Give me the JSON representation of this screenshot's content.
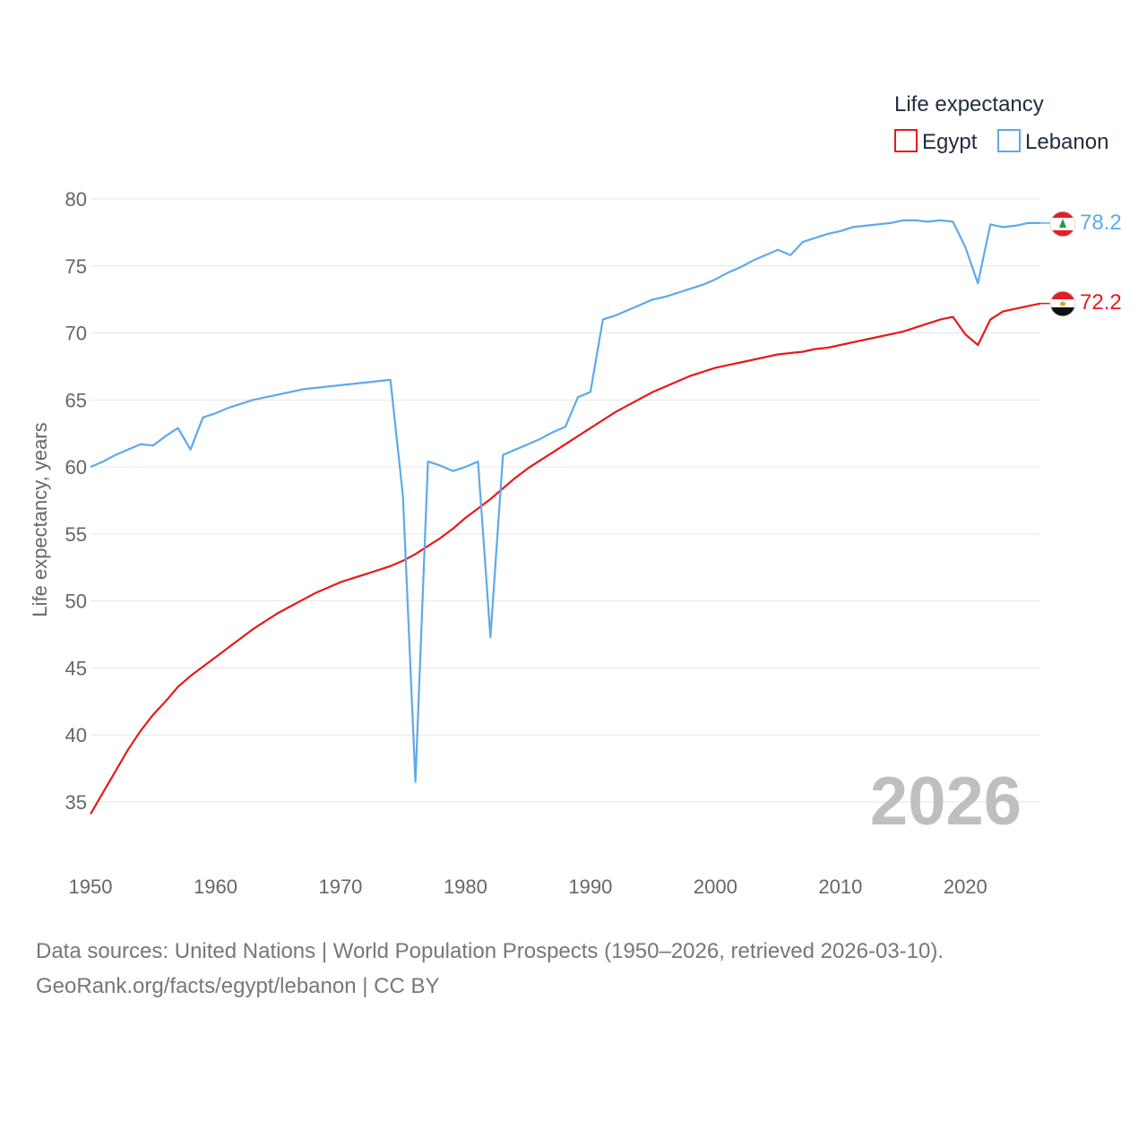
{
  "chart_data": {
    "type": "line",
    "legend_title": "Life expectancy",
    "legend_placement": "top-right",
    "ylabel": "Life expectancy, years",
    "xlabel": "",
    "xlim": [
      1950,
      2026
    ],
    "ylim": [
      32,
      81
    ],
    "x_ticks": [
      1950,
      1960,
      1970,
      1980,
      1990,
      2000,
      2010,
      2020
    ],
    "y_ticks": [
      35,
      40,
      45,
      50,
      55,
      60,
      65,
      70,
      75,
      80
    ],
    "year_label": "2026",
    "series": [
      {
        "name": "Egypt",
        "color": "#e8191b",
        "end_value": 72.2,
        "end_label": "72.2",
        "points": [
          [
            1950,
            34.1
          ],
          [
            1951,
            35.7
          ],
          [
            1952,
            37.3
          ],
          [
            1953,
            38.9
          ],
          [
            1954,
            40.3
          ],
          [
            1955,
            41.5
          ],
          [
            1956,
            42.5
          ],
          [
            1957,
            43.6
          ],
          [
            1958,
            44.4
          ],
          [
            1959,
            45.1
          ],
          [
            1960,
            45.8
          ],
          [
            1961,
            46.5
          ],
          [
            1962,
            47.2
          ],
          [
            1963,
            47.9
          ],
          [
            1964,
            48.5
          ],
          [
            1965,
            49.1
          ],
          [
            1966,
            49.6
          ],
          [
            1967,
            50.1
          ],
          [
            1968,
            50.6
          ],
          [
            1969,
            51.0
          ],
          [
            1970,
            51.4
          ],
          [
            1971,
            51.7
          ],
          [
            1972,
            52.0
          ],
          [
            1973,
            52.3
          ],
          [
            1974,
            52.6
          ],
          [
            1975,
            53.0
          ],
          [
            1976,
            53.5
          ],
          [
            1977,
            54.1
          ],
          [
            1978,
            54.7
          ],
          [
            1979,
            55.4
          ],
          [
            1980,
            56.2
          ],
          [
            1981,
            56.9
          ],
          [
            1982,
            57.6
          ],
          [
            1983,
            58.4
          ],
          [
            1984,
            59.2
          ],
          [
            1985,
            59.9
          ],
          [
            1986,
            60.5
          ],
          [
            1987,
            61.1
          ],
          [
            1988,
            61.7
          ],
          [
            1989,
            62.3
          ],
          [
            1990,
            62.9
          ],
          [
            1991,
            63.5
          ],
          [
            1992,
            64.1
          ],
          [
            1993,
            64.6
          ],
          [
            1994,
            65.1
          ],
          [
            1995,
            65.6
          ],
          [
            1996,
            66.0
          ],
          [
            1997,
            66.4
          ],
          [
            1998,
            66.8
          ],
          [
            1999,
            67.1
          ],
          [
            2000,
            67.4
          ],
          [
            2001,
            67.6
          ],
          [
            2002,
            67.8
          ],
          [
            2003,
            68.0
          ],
          [
            2004,
            68.2
          ],
          [
            2005,
            68.4
          ],
          [
            2006,
            68.5
          ],
          [
            2007,
            68.6
          ],
          [
            2008,
            68.8
          ],
          [
            2009,
            68.9
          ],
          [
            2010,
            69.1
          ],
          [
            2011,
            69.3
          ],
          [
            2012,
            69.5
          ],
          [
            2013,
            69.7
          ],
          [
            2014,
            69.9
          ],
          [
            2015,
            70.1
          ],
          [
            2016,
            70.4
          ],
          [
            2017,
            70.7
          ],
          [
            2018,
            71.0
          ],
          [
            2019,
            71.2
          ],
          [
            2020,
            69.9
          ],
          [
            2021,
            69.1
          ],
          [
            2022,
            71.0
          ],
          [
            2023,
            71.6
          ],
          [
            2024,
            71.8
          ],
          [
            2025,
            72.0
          ],
          [
            2026,
            72.2
          ]
        ]
      },
      {
        "name": "Lebanon",
        "color": "#5ea9ea",
        "end_value": 78.2,
        "end_label": "78.2",
        "points": [
          [
            1950,
            60.0
          ],
          [
            1951,
            60.4
          ],
          [
            1952,
            60.9
          ],
          [
            1953,
            61.3
          ],
          [
            1954,
            61.7
          ],
          [
            1955,
            61.6
          ],
          [
            1956,
            62.3
          ],
          [
            1957,
            62.9
          ],
          [
            1958,
            61.3
          ],
          [
            1959,
            63.7
          ],
          [
            1960,
            64.0
          ],
          [
            1961,
            64.4
          ],
          [
            1962,
            64.7
          ],
          [
            1963,
            65.0
          ],
          [
            1964,
            65.2
          ],
          [
            1965,
            65.4
          ],
          [
            1966,
            65.6
          ],
          [
            1967,
            65.8
          ],
          [
            1968,
            65.9
          ],
          [
            1969,
            66.0
          ],
          [
            1970,
            66.1
          ],
          [
            1971,
            66.2
          ],
          [
            1972,
            66.3
          ],
          [
            1973,
            66.4
          ],
          [
            1974,
            66.5
          ],
          [
            1975,
            57.8
          ],
          [
            1976,
            36.5
          ],
          [
            1977,
            60.4
          ],
          [
            1978,
            60.1
          ],
          [
            1979,
            59.7
          ],
          [
            1980,
            60.0
          ],
          [
            1981,
            60.4
          ],
          [
            1982,
            47.3
          ],
          [
            1983,
            60.9
          ],
          [
            1984,
            61.3
          ],
          [
            1985,
            61.7
          ],
          [
            1986,
            62.1
          ],
          [
            1987,
            62.6
          ],
          [
            1988,
            63.0
          ],
          [
            1989,
            65.2
          ],
          [
            1990,
            65.6
          ],
          [
            1991,
            71.0
          ],
          [
            1992,
            71.3
          ],
          [
            1993,
            71.7
          ],
          [
            1994,
            72.1
          ],
          [
            1995,
            72.5
          ],
          [
            1996,
            72.7
          ],
          [
            1997,
            73.0
          ],
          [
            1998,
            73.3
          ],
          [
            1999,
            73.6
          ],
          [
            2000,
            74.0
          ],
          [
            2001,
            74.5
          ],
          [
            2002,
            74.9
          ],
          [
            2003,
            75.4
          ],
          [
            2004,
            75.8
          ],
          [
            2005,
            76.2
          ],
          [
            2006,
            75.8
          ],
          [
            2007,
            76.8
          ],
          [
            2008,
            77.1
          ],
          [
            2009,
            77.4
          ],
          [
            2010,
            77.6
          ],
          [
            2011,
            77.9
          ],
          [
            2012,
            78.0
          ],
          [
            2013,
            78.1
          ],
          [
            2014,
            78.2
          ],
          [
            2015,
            78.4
          ],
          [
            2016,
            78.4
          ],
          [
            2017,
            78.3
          ],
          [
            2018,
            78.4
          ],
          [
            2019,
            78.3
          ],
          [
            2020,
            76.4
          ],
          [
            2021,
            73.7
          ],
          [
            2022,
            78.1
          ],
          [
            2023,
            77.9
          ],
          [
            2024,
            78.0
          ],
          [
            2025,
            78.2
          ],
          [
            2026,
            78.2
          ]
        ]
      }
    ]
  },
  "footer": {
    "line1": "Data sources: United Nations | World Population Prospects (1950–2026, retrieved 2026-03-10).",
    "line2": "GeoRank.org/facts/egypt/lebanon | CC BY"
  },
  "icons": {
    "lebanon": "lebanon-flag-icon",
    "egypt": "egypt-flag-icon"
  }
}
